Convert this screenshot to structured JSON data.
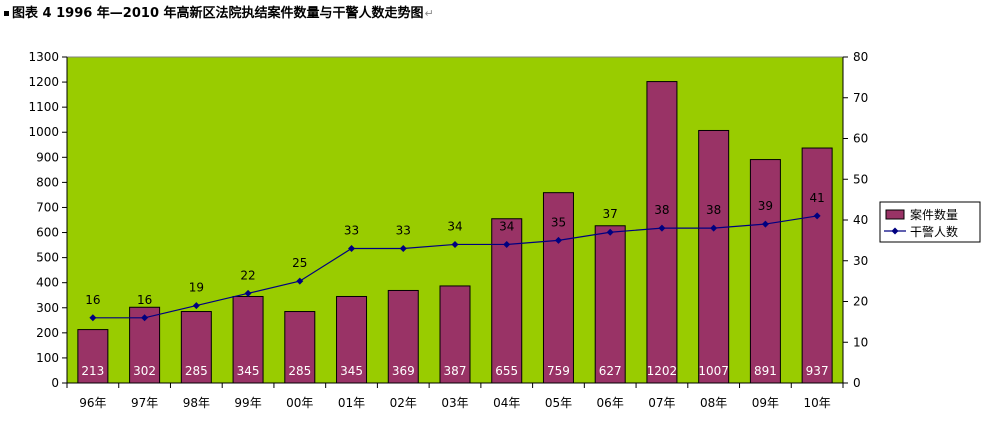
{
  "chart_data": {
    "type": "bar",
    "title": "图表 4 1996 年—2010 年高新区法院执结案件数量与干警人数走势图",
    "categories": [
      "96年",
      "97年",
      "98年",
      "99年",
      "00年",
      "01年",
      "02年",
      "03年",
      "04年",
      "05年",
      "06年",
      "07年",
      "08年",
      "09年",
      "10年"
    ],
    "series": [
      {
        "name": "案件数量",
        "type": "bar",
        "axis": "left",
        "values": [
          213,
          302,
          285,
          345,
          285,
          345,
          369,
          387,
          655,
          759,
          627,
          1202,
          1007,
          891,
          937
        ]
      },
      {
        "name": "干警人数",
        "type": "line",
        "axis": "right",
        "values": [
          16,
          16,
          19,
          22,
          25,
          33,
          33,
          34,
          34,
          35,
          37,
          38,
          38,
          39,
          41
        ]
      }
    ],
    "ylim_left": [
      0,
      1300
    ],
    "yticks_left": [
      0,
      100,
      200,
      300,
      400,
      500,
      600,
      700,
      800,
      900,
      1000,
      1100,
      1200,
      1300
    ],
    "ylim_right": [
      0,
      80
    ],
    "yticks_right": [
      0,
      10,
      20,
      30,
      40,
      50,
      60,
      70,
      80
    ],
    "legend_position": "right",
    "grid": false,
    "colors": {
      "plot_background": "#99cc00",
      "bar_fill": "#993366",
      "line": "#000080"
    }
  }
}
